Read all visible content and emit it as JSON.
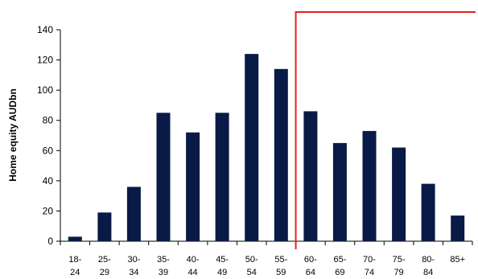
{
  "chart_data": {
    "type": "bar",
    "title": "",
    "xlabel": "",
    "ylabel": "Home equity  AUDbn",
    "categories": [
      [
        "18-",
        "24"
      ],
      [
        "25-",
        "29"
      ],
      [
        "30-",
        "34"
      ],
      [
        "35-",
        "39"
      ],
      [
        "40-",
        "44"
      ],
      [
        "45-",
        "49"
      ],
      [
        "50-",
        "54"
      ],
      [
        "55-",
        "59"
      ],
      [
        "60-",
        "64"
      ],
      [
        "65-",
        "69"
      ],
      [
        "70-",
        "74"
      ],
      [
        "75-",
        "79"
      ],
      [
        "80-",
        "84"
      ],
      [
        "85+",
        ""
      ]
    ],
    "values": [
      3,
      19,
      36,
      85,
      72,
      85,
      124,
      114,
      86,
      65,
      73,
      62,
      38,
      17
    ],
    "ylim": [
      0,
      140
    ],
    "yticks": [
      0,
      20,
      40,
      60,
      80,
      100,
      120,
      140
    ],
    "grid": false,
    "legend": "none",
    "bar_color": "#0a1a46",
    "annotation": {
      "type": "bracket-line",
      "color": "#e32020",
      "starts_between": [
        "55-59",
        "60-64"
      ]
    }
  }
}
